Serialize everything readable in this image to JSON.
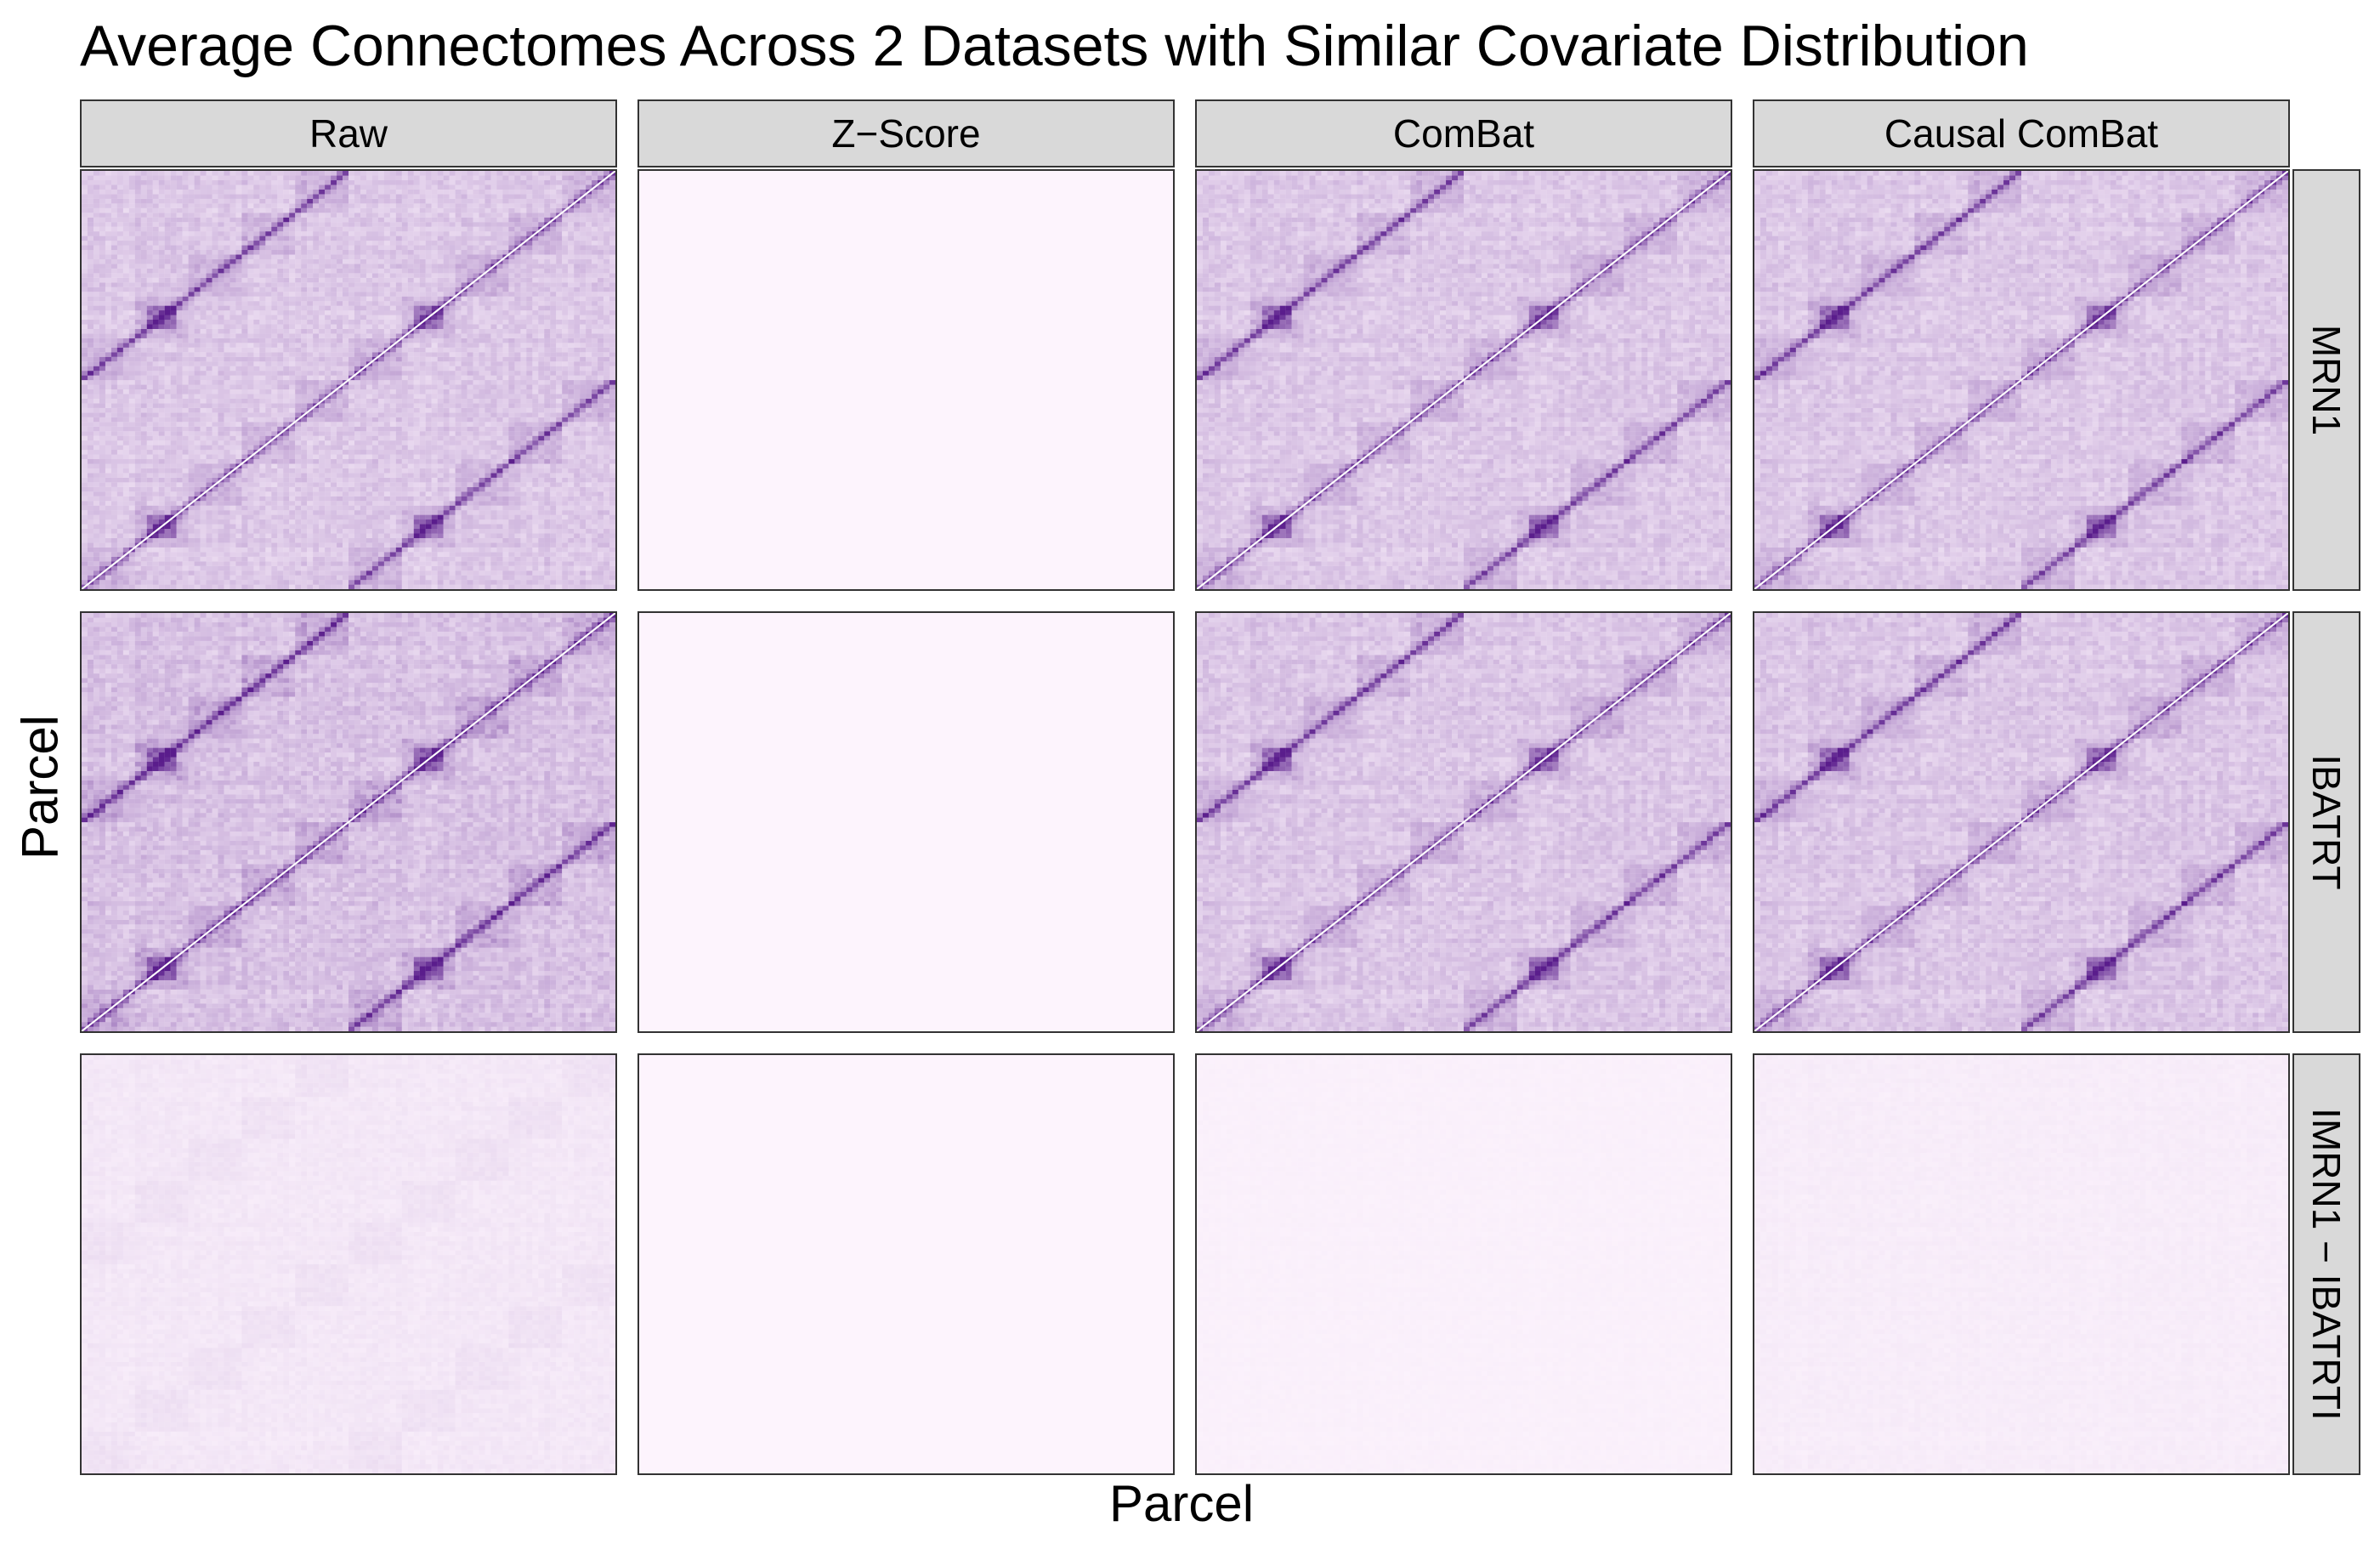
{
  "title": "Average Connectomes Across 2 Datasets with Similar Covariate Distribution",
  "chart_data": {
    "type": "heatmap",
    "title": "Average Connectomes Across 2 Datasets with Similar Covariate Distribution",
    "xlabel": "Parcel",
    "ylabel": "Parcel",
    "columns": [
      "Raw",
      "Z−Score",
      "ComBat",
      "Causal ComBat"
    ],
    "rows": [
      "MRN1",
      "IBATRT",
      "IMRN1 − IBATRTI"
    ],
    "colors": {
      "low": "#fdf4fd",
      "mid": "#c4a7d6",
      "high": "#5a1d8c",
      "diagonal": "#ffffff"
    },
    "panels": [
      {
        "row": "MRN1",
        "column": "Raw",
        "mean_intensity": 0.35,
        "diagonal_bands": true,
        "network_blocks": true
      },
      {
        "row": "MRN1",
        "column": "Z−Score",
        "mean_intensity": 0.0,
        "diagonal_bands": false,
        "network_blocks": false
      },
      {
        "row": "MRN1",
        "column": "ComBat",
        "mean_intensity": 0.35,
        "diagonal_bands": true,
        "network_blocks": true
      },
      {
        "row": "MRN1",
        "column": "Causal ComBat",
        "mean_intensity": 0.35,
        "diagonal_bands": true,
        "network_blocks": true
      },
      {
        "row": "IBATRT",
        "column": "Raw",
        "mean_intensity": 0.4,
        "diagonal_bands": true,
        "network_blocks": true
      },
      {
        "row": "IBATRT",
        "column": "Z−Score",
        "mean_intensity": 0.0,
        "diagonal_bands": false,
        "network_blocks": false
      },
      {
        "row": "IBATRT",
        "column": "ComBat",
        "mean_intensity": 0.36,
        "diagonal_bands": true,
        "network_blocks": true
      },
      {
        "row": "IBATRT",
        "column": "Causal ComBat",
        "mean_intensity": 0.36,
        "diagonal_bands": true,
        "network_blocks": true
      },
      {
        "row": "IMRN1 − IBATRTI",
        "column": "Raw",
        "mean_intensity": 0.1,
        "diagonal_bands": false,
        "network_blocks": true
      },
      {
        "row": "IMRN1 − IBATRTI",
        "column": "Z−Score",
        "mean_intensity": 0.0,
        "diagonal_bands": false,
        "network_blocks": false
      },
      {
        "row": "IMRN1 − IBATRTI",
        "column": "ComBat",
        "mean_intensity": 0.03,
        "diagonal_bands": false,
        "network_blocks": false
      },
      {
        "row": "IMRN1 − IBATRTI",
        "column": "Causal ComBat",
        "mean_intensity": 0.06,
        "diagonal_bands": false,
        "network_blocks": false
      }
    ]
  }
}
